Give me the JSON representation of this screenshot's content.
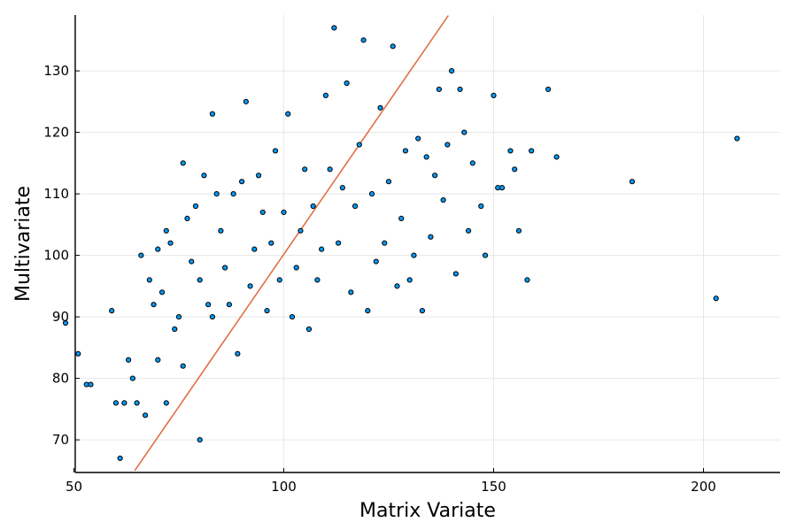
{
  "chart_data": {
    "type": "scatter",
    "xlabel": "Matrix Variate",
    "ylabel": "Multivariate",
    "xlim": [
      45,
      212
    ],
    "ylim": [
      65,
      139
    ],
    "xticks": [
      50,
      100,
      150,
      200
    ],
    "yticks": [
      70,
      80,
      90,
      100,
      110,
      120,
      130
    ],
    "grid": true,
    "legend": "none",
    "colors": {
      "points": "#009af9",
      "point_edge": "#000000",
      "line": "#e26f46"
    },
    "line": {
      "x": [
        64.5,
        139.2
      ],
      "y": [
        65,
        139
      ]
    },
    "points": [
      [
        48,
        89
      ],
      [
        51,
        84
      ],
      [
        53,
        79
      ],
      [
        54,
        79
      ],
      [
        59,
        91
      ],
      [
        60,
        76
      ],
      [
        61,
        67
      ],
      [
        62,
        76
      ],
      [
        63,
        83
      ],
      [
        64,
        80
      ],
      [
        65,
        76
      ],
      [
        66,
        100
      ],
      [
        67,
        74
      ],
      [
        68,
        96
      ],
      [
        69,
        92
      ],
      [
        70,
        101
      ],
      [
        70,
        83
      ],
      [
        71,
        94
      ],
      [
        72,
        104
      ],
      [
        72,
        76
      ],
      [
        73,
        102
      ],
      [
        74,
        88
      ],
      [
        75,
        90
      ],
      [
        76,
        82
      ],
      [
        76,
        115
      ],
      [
        77,
        106
      ],
      [
        78,
        99
      ],
      [
        79,
        108
      ],
      [
        80,
        96
      ],
      [
        80,
        70
      ],
      [
        81,
        113
      ],
      [
        82,
        92
      ],
      [
        83,
        90
      ],
      [
        83,
        123
      ],
      [
        84,
        110
      ],
      [
        85,
        104
      ],
      [
        86,
        98
      ],
      [
        87,
        92
      ],
      [
        88,
        110
      ],
      [
        89,
        84
      ],
      [
        90,
        112
      ],
      [
        91,
        125
      ],
      [
        92,
        95
      ],
      [
        93,
        101
      ],
      [
        94,
        113
      ],
      [
        95,
        107
      ],
      [
        96,
        91
      ],
      [
        97,
        102
      ],
      [
        98,
        117
      ],
      [
        99,
        96
      ],
      [
        100,
        107
      ],
      [
        101,
        123
      ],
      [
        102,
        90
      ],
      [
        103,
        98
      ],
      [
        104,
        104
      ],
      [
        105,
        114
      ],
      [
        106,
        88
      ],
      [
        107,
        108
      ],
      [
        108,
        96
      ],
      [
        109,
        101
      ],
      [
        110,
        126
      ],
      [
        111,
        114
      ],
      [
        112,
        137
      ],
      [
        113,
        102
      ],
      [
        114,
        111
      ],
      [
        115,
        128
      ],
      [
        116,
        94
      ],
      [
        117,
        108
      ],
      [
        118,
        118
      ],
      [
        119,
        135
      ],
      [
        120,
        91
      ],
      [
        121,
        110
      ],
      [
        122,
        99
      ],
      [
        123,
        124
      ],
      [
        124,
        102
      ],
      [
        125,
        112
      ],
      [
        126,
        134
      ],
      [
        127,
        95
      ],
      [
        128,
        106
      ],
      [
        129,
        117
      ],
      [
        130,
        96
      ],
      [
        131,
        100
      ],
      [
        132,
        119
      ],
      [
        133,
        91
      ],
      [
        134,
        116
      ],
      [
        135,
        103
      ],
      [
        136,
        113
      ],
      [
        137,
        127
      ],
      [
        138,
        109
      ],
      [
        139,
        118
      ],
      [
        140,
        130
      ],
      [
        141,
        97
      ],
      [
        142,
        127
      ],
      [
        143,
        120
      ],
      [
        144,
        104
      ],
      [
        145,
        115
      ],
      [
        147,
        108
      ],
      [
        148,
        100
      ],
      [
        150,
        126
      ],
      [
        151,
        111
      ],
      [
        152,
        111
      ],
      [
        154,
        117
      ],
      [
        155,
        114
      ],
      [
        156,
        104
      ],
      [
        158,
        96
      ],
      [
        159,
        117
      ],
      [
        163,
        127
      ],
      [
        165,
        116
      ],
      [
        183,
        112
      ],
      [
        203,
        93
      ],
      [
        208,
        119
      ]
    ]
  }
}
